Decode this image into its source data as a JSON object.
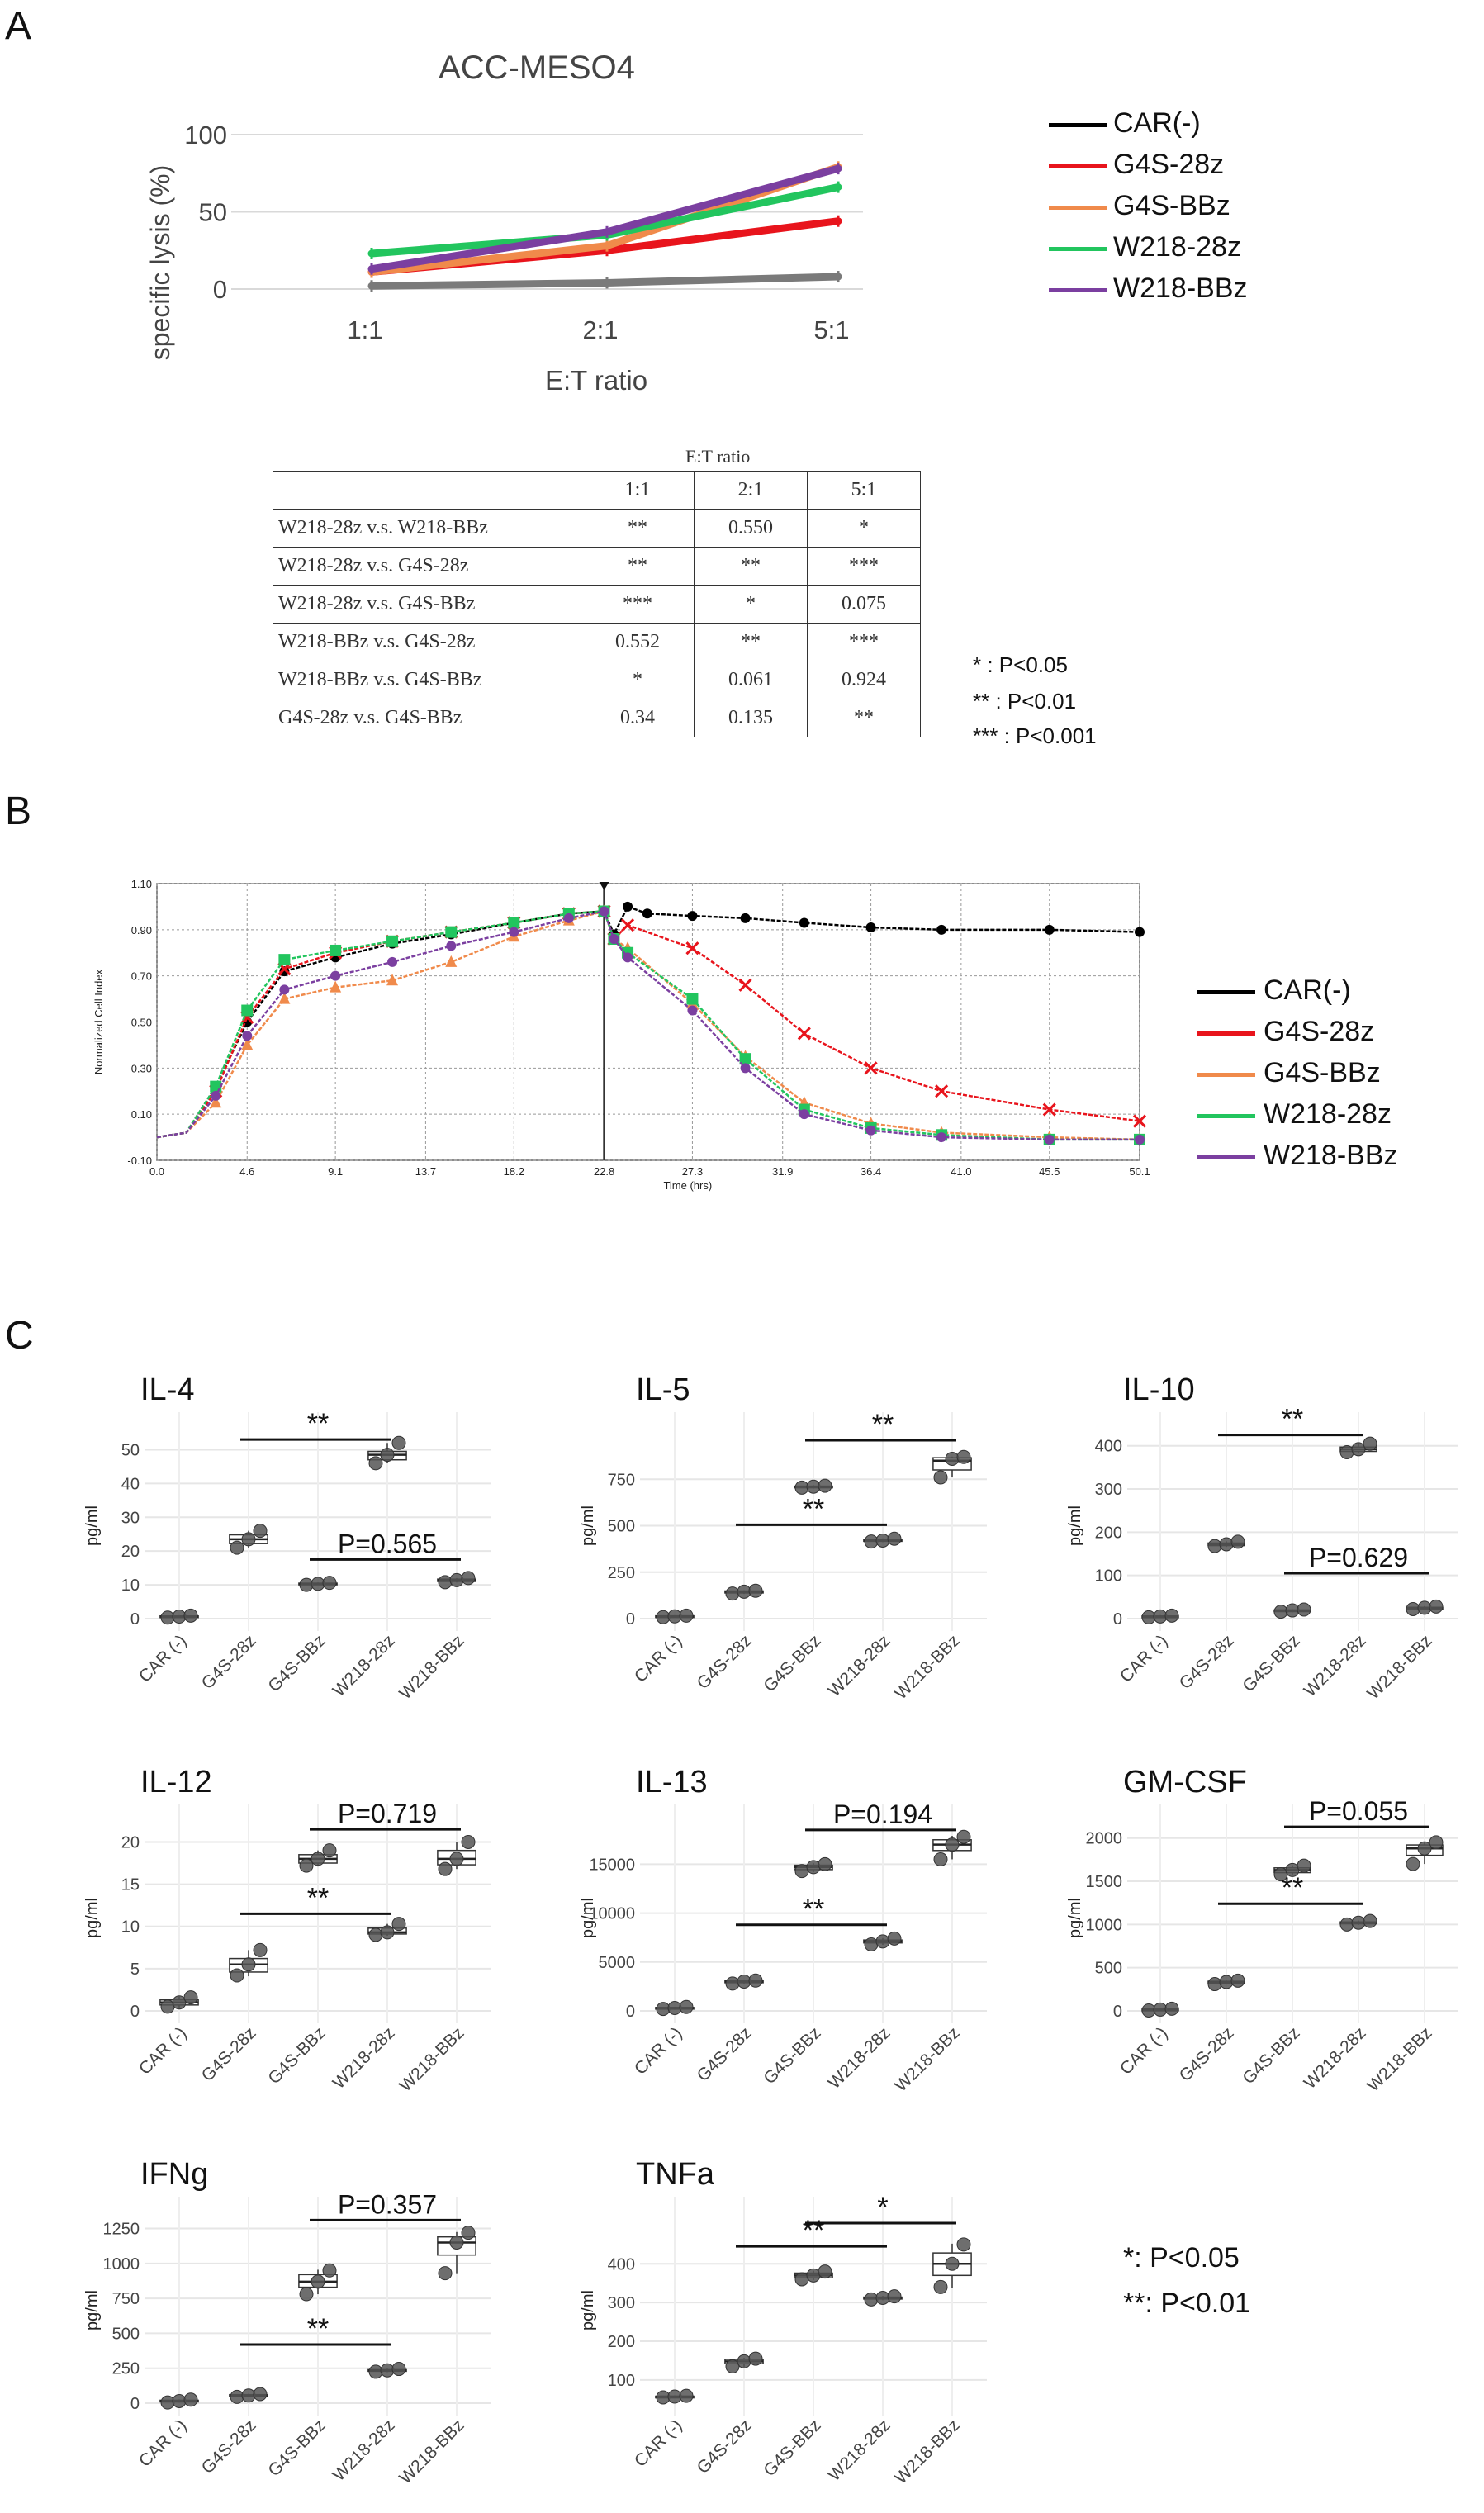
{
  "panels": {
    "a": "A",
    "b": "B",
    "c": "C"
  },
  "colors": {
    "CAR(-)": "#000000",
    "G4S-28z": "#e8141c",
    "G4S-BBz": "#f08a4b",
    "W218-28z": "#22c55e",
    "W218-BBz": "#7b3fa0",
    "carline_a": "#7a7a7a"
  },
  "legend": [
    "CAR(-)",
    "G4S-28z",
    "G4S-BBz",
    "W218-28z",
    "W218-BBz"
  ],
  "chart_data": [
    {
      "id": "A",
      "type": "line",
      "title": "ACC-MESO4",
      "xlabel": "E:T ratio",
      "ylabel": "specific lysis (%)",
      "categories": [
        "1:1",
        "2:1",
        "5:1"
      ],
      "ylim": [
        0,
        100
      ],
      "yticks": [
        "0",
        "50",
        "100"
      ],
      "series": [
        {
          "name": "CAR(-)",
          "values": [
            2,
            4,
            8
          ]
        },
        {
          "name": "G4S-28z",
          "values": [
            11,
            25,
            44
          ]
        },
        {
          "name": "G4S-BBz",
          "values": [
            11,
            28,
            79
          ]
        },
        {
          "name": "W218-28z",
          "values": [
            23,
            35,
            66
          ]
        },
        {
          "name": "W218-BBz",
          "values": [
            13,
            37,
            78
          ]
        }
      ]
    },
    {
      "id": "B",
      "type": "line",
      "ylabel": "Normalized Cell Index",
      "xlabel": "Time (hrs)",
      "xticks": [
        "0.0",
        "4.6",
        "9.1",
        "13.7",
        "18.2",
        "22.8",
        "27.3",
        "31.9",
        "36.4",
        "41.0",
        "45.5",
        "50.1"
      ],
      "yticks": [
        "-0.10",
        "0.10",
        "0.30",
        "0.50",
        "0.70",
        "0.90",
        "1.10"
      ],
      "xlim": [
        0,
        50.1
      ],
      "ylim": [
        -0.1,
        1.1
      ],
      "series": [
        {
          "name": "CAR(-)",
          "x": [
            0,
            1.5,
            3,
            4.6,
            6.5,
            9.1,
            12,
            15,
            18.2,
            21,
            22.8,
            23.3,
            24,
            25,
            27.3,
            30,
            33,
            36.4,
            40,
            45.5,
            50.1
          ],
          "y": [
            0,
            0.02,
            0.22,
            0.5,
            0.72,
            0.78,
            0.84,
            0.88,
            0.93,
            0.97,
            0.98,
            0.88,
            1.0,
            0.97,
            0.96,
            0.95,
            0.93,
            0.91,
            0.9,
            0.9,
            0.89
          ]
        },
        {
          "name": "G4S-28z",
          "x": [
            0,
            1.5,
            3,
            4.6,
            6.5,
            9.1,
            12,
            15,
            18.2,
            21,
            22.8,
            23.3,
            24,
            27.3,
            30,
            33,
            36.4,
            40,
            45.5,
            50.1
          ],
          "y": [
            0,
            0.02,
            0.2,
            0.52,
            0.73,
            0.8,
            0.85,
            0.89,
            0.93,
            0.97,
            0.98,
            0.86,
            0.92,
            0.82,
            0.66,
            0.45,
            0.3,
            0.2,
            0.12,
            0.07
          ]
        },
        {
          "name": "G4S-BBz",
          "x": [
            0,
            1.5,
            3,
            4.6,
            6.5,
            9.1,
            12,
            15,
            18.2,
            21,
            22.8,
            23.3,
            24,
            27.3,
            30,
            33,
            36.4,
            40,
            45.5,
            50.1
          ],
          "y": [
            0,
            0.02,
            0.15,
            0.4,
            0.6,
            0.65,
            0.68,
            0.76,
            0.87,
            0.94,
            0.98,
            0.86,
            0.82,
            0.58,
            0.35,
            0.15,
            0.06,
            0.02,
            0.0,
            -0.01
          ]
        },
        {
          "name": "W218-28z",
          "x": [
            0,
            1.5,
            3,
            4.6,
            6.5,
            9.1,
            12,
            15,
            18.2,
            21,
            22.8,
            23.3,
            24,
            27.3,
            30,
            33,
            36.4,
            40,
            45.5,
            50.1
          ],
          "y": [
            0,
            0.02,
            0.22,
            0.55,
            0.77,
            0.81,
            0.85,
            0.89,
            0.93,
            0.97,
            0.98,
            0.86,
            0.8,
            0.6,
            0.34,
            0.12,
            0.04,
            0.01,
            -0.01,
            -0.01
          ]
        },
        {
          "name": "W218-BBz",
          "x": [
            0,
            1.5,
            3,
            4.6,
            6.5,
            9.1,
            12,
            15,
            18.2,
            21,
            22.8,
            23.3,
            24,
            27.3,
            30,
            33,
            36.4,
            40,
            45.5,
            50.1
          ],
          "y": [
            0,
            0.02,
            0.18,
            0.44,
            0.64,
            0.7,
            0.76,
            0.83,
            0.89,
            0.95,
            0.98,
            0.86,
            0.78,
            0.55,
            0.3,
            0.1,
            0.03,
            0.0,
            -0.01,
            -0.01
          ]
        }
      ]
    },
    {
      "id": "IL-4",
      "type": "box",
      "title": "IL-4",
      "ylabel": "pg/ml",
      "categories": [
        "CAR (-)",
        "G4S-28z",
        "G4S-BBz",
        "W218-28z",
        "W218-BBz"
      ],
      "ylim": [
        0,
        55
      ],
      "yticks": [
        0,
        10,
        20,
        30,
        40,
        50
      ],
      "points": [
        [
          0.3,
          0.6,
          0.9
        ],
        [
          21,
          23.5,
          26
        ],
        [
          10,
          10.3,
          10.6
        ],
        [
          46,
          48.5,
          52
        ],
        [
          10.8,
          11.4,
          12
        ]
      ],
      "boxes": [
        [
          0.2,
          0.4,
          0.6,
          0.8,
          1.0
        ],
        [
          21,
          22.2,
          23.5,
          24.8,
          26
        ],
        [
          9.9,
          10.1,
          10.3,
          10.5,
          10.7
        ],
        [
          46,
          47,
          48.5,
          49.5,
          52
        ],
        [
          10.7,
          11,
          11.4,
          11.7,
          12
        ]
      ],
      "brackets": [
        {
          "from": 1,
          "to": 3,
          "label": "**",
          "y": 53
        },
        {
          "from": 2,
          "to": 4,
          "label": "P=0.565",
          "y": 17.5
        }
      ]
    },
    {
      "id": "IL-5",
      "type": "box",
      "title": "IL-5",
      "ylabel": "pg/ml",
      "categories": [
        "CAR (-)",
        "G4S-28z",
        "G4S-BBz",
        "W218-28z",
        "W218-BBz"
      ],
      "ylim": [
        0,
        1000
      ],
      "yticks": [
        0,
        250,
        500,
        750
      ],
      "points": [
        [
          8,
          12,
          16
        ],
        [
          135,
          145,
          150
        ],
        [
          705,
          710,
          715
        ],
        [
          415,
          420,
          430
        ],
        [
          760,
          860,
          870
        ]
      ],
      "boxes": [
        [
          6,
          9,
          12,
          15,
          18
        ],
        [
          133,
          138,
          145,
          149,
          152
        ],
        [
          700,
          705,
          710,
          713,
          718
        ],
        [
          412,
          416,
          420,
          426,
          432
        ],
        [
          760,
          800,
          850,
          866,
          872
        ]
      ],
      "brackets": [
        {
          "from": 2,
          "to": 4,
          "label": "**",
          "y": 960
        },
        {
          "from": 1,
          "to": 3,
          "label": "**",
          "y": 505
        }
      ]
    },
    {
      "id": "IL-10",
      "type": "box",
      "title": "IL-10",
      "ylabel": "pg/ml",
      "categories": [
        "CAR (-)",
        "G4S-28z",
        "G4S-BBz",
        "W218-28z",
        "W218-BBz"
      ],
      "ylim": [
        0,
        430
      ],
      "yticks": [
        0,
        100,
        200,
        300,
        400
      ],
      "points": [
        [
          3,
          5,
          7
        ],
        [
          168,
          172,
          178
        ],
        [
          16,
          19,
          21
        ],
        [
          385,
          392,
          405
        ],
        [
          22,
          25,
          28
        ]
      ],
      "boxes": [
        [
          2,
          4,
          5,
          6,
          8
        ],
        [
          166,
          169,
          172,
          175,
          179
        ],
        [
          15,
          17,
          19,
          20,
          22
        ],
        [
          384,
          387,
          392,
          397,
          406
        ],
        [
          21,
          23,
          25,
          26,
          29
        ]
      ],
      "brackets": [
        {
          "from": 1,
          "to": 3,
          "label": "**",
          "y": 425
        },
        {
          "from": 2,
          "to": 4,
          "label": "P=0.629",
          "y": 105
        }
      ]
    },
    {
      "id": "IL-12",
      "type": "box",
      "title": "IL-12",
      "ylabel": "pg/ml",
      "categories": [
        "CAR (-)",
        "G4S-28z",
        "G4S-BBz",
        "W218-28z",
        "W218-BBz"
      ],
      "ylim": [
        0,
        22
      ],
      "yticks": [
        0,
        5,
        10,
        15,
        20
      ],
      "points": [
        [
          0.5,
          1.0,
          1.6
        ],
        [
          4.2,
          5.5,
          7.2
        ],
        [
          17.2,
          18,
          19
        ],
        [
          9,
          9.3,
          10.3
        ],
        [
          16.8,
          18,
          20
        ]
      ],
      "boxes": [
        [
          0.4,
          0.7,
          1.0,
          1.3,
          1.7
        ],
        [
          4.1,
          4.6,
          5.5,
          6.2,
          7.2
        ],
        [
          17.1,
          17.5,
          18,
          18.5,
          19
        ],
        [
          8.9,
          9.1,
          9.3,
          9.8,
          10.3
        ],
        [
          16.8,
          17.3,
          18,
          19,
          20
        ]
      ],
      "brackets": [
        {
          "from": 2,
          "to": 4,
          "label": "P=0.719",
          "y": 21.5
        },
        {
          "from": 1,
          "to": 3,
          "label": "**",
          "y": 11.5
        }
      ]
    },
    {
      "id": "IL-13",
      "type": "box",
      "title": "IL-13",
      "ylabel": "pg/ml",
      "categories": [
        "CAR (-)",
        "G4S-28z",
        "G4S-BBz",
        "W218-28z",
        "W218-BBz"
      ],
      "ylim": [
        0,
        19000
      ],
      "yticks": [
        0,
        5000,
        10000,
        15000
      ],
      "points": [
        [
          200,
          300,
          400
        ],
        [
          2800,
          3000,
          3100
        ],
        [
          14300,
          14700,
          15000
        ],
        [
          6800,
          7100,
          7400
        ],
        [
          15500,
          17000,
          17800
        ]
      ],
      "boxes": [
        [
          150,
          250,
          300,
          350,
          420
        ],
        [
          2750,
          2880,
          3000,
          3080,
          3150
        ],
        [
          14200,
          14450,
          14700,
          14900,
          15100
        ],
        [
          6750,
          6950,
          7100,
          7250,
          7450
        ],
        [
          15500,
          16400,
          17000,
          17500,
          17900
        ]
      ],
      "brackets": [
        {
          "from": 2,
          "to": 4,
          "label": "P=0.194",
          "y": 18500
        },
        {
          "from": 1,
          "to": 3,
          "label": "**",
          "y": 8800
        }
      ]
    },
    {
      "id": "GM-CSF",
      "type": "box",
      "title": "GM-CSF",
      "ylabel": "pg/ml",
      "categories": [
        "CAR (-)",
        "G4S-28z",
        "G4S-BBz",
        "W218-28z",
        "W218-BBz"
      ],
      "ylim": [
        0,
        2150
      ],
      "yticks": [
        0,
        500,
        1000,
        1500,
        2000
      ],
      "points": [
        [
          5,
          15,
          25
        ],
        [
          310,
          335,
          350
        ],
        [
          1580,
          1630,
          1680
        ],
        [
          1000,
          1020,
          1040
        ],
        [
          1700,
          1880,
          1950
        ]
      ],
      "boxes": [
        [
          3,
          10,
          15,
          20,
          28
        ],
        [
          305,
          320,
          335,
          343,
          352
        ],
        [
          1575,
          1600,
          1630,
          1655,
          1685
        ],
        [
          995,
          1008,
          1020,
          1030,
          1045
        ],
        [
          1700,
          1800,
          1880,
          1920,
          1955
        ]
      ],
      "brackets": [
        {
          "from": 2,
          "to": 4,
          "label": "P=0.055",
          "y": 2130
        },
        {
          "from": 1,
          "to": 3,
          "label": "**",
          "y": 1240
        }
      ]
    },
    {
      "id": "IFNg",
      "type": "box",
      "title": "IFNg",
      "ylabel": "pg/ml",
      "categories": [
        "CAR (-)",
        "G4S-28z",
        "G4S-BBz",
        "W218-28z",
        "W218-BBz"
      ],
      "ylim": [
        0,
        1330
      ],
      "yticks": [
        0,
        250,
        500,
        750,
        1000,
        1250
      ],
      "points": [
        [
          5,
          15,
          25
        ],
        [
          45,
          55,
          65
        ],
        [
          780,
          870,
          950
        ],
        [
          225,
          235,
          245
        ],
        [
          930,
          1150,
          1220
        ]
      ],
      "boxes": [
        [
          3,
          9,
          15,
          21,
          27
        ],
        [
          43,
          49,
          55,
          61,
          67
        ],
        [
          780,
          830,
          870,
          920,
          955
        ],
        [
          222,
          229,
          235,
          240,
          247
        ],
        [
          930,
          1060,
          1150,
          1190,
          1225
        ]
      ],
      "brackets": [
        {
          "from": 2,
          "to": 4,
          "label": "P=0.357",
          "y": 1310
        },
        {
          "from": 1,
          "to": 3,
          "label": "**",
          "y": 420
        }
      ]
    },
    {
      "id": "TNFa",
      "type": "box",
      "title": "TNFa",
      "ylabel": "pg/ml",
      "categories": [
        "CAR (-)",
        "G4S-28z",
        "G4S-BBz",
        "W218-28z",
        "W218-BBz"
      ],
      "ylim": [
        40,
        520
      ],
      "yticks": [
        100,
        200,
        300,
        400
      ],
      "points": [
        [
          55,
          57,
          59
        ],
        [
          135,
          148,
          155
        ],
        [
          360,
          370,
          380
        ],
        [
          308,
          312,
          316
        ],
        [
          340,
          400,
          450
        ]
      ],
      "boxes": [
        [
          54,
          56,
          57,
          58,
          60
        ],
        [
          133,
          142,
          148,
          153,
          157
        ],
        [
          358,
          364,
          370,
          376,
          382
        ],
        [
          306,
          309,
          312,
          314,
          317
        ],
        [
          338,
          370,
          400,
          428,
          452
        ]
      ],
      "brackets": [
        {
          "from": 2,
          "to": 4,
          "label": "*",
          "y": 505
        },
        {
          "from": 1,
          "to": 3,
          "label": "**",
          "y": 445
        }
      ]
    }
  ],
  "table": {
    "caption": "E:T ratio",
    "header": [
      "",
      "1:1",
      "2:1",
      "5:1"
    ],
    "rows": [
      [
        "W218-28z v.s. W218-BBz",
        "**",
        "0.550",
        "*"
      ],
      [
        "W218-28z v.s. G4S-28z",
        "**",
        "**",
        "***"
      ],
      [
        "W218-28z v.s. G4S-BBz",
        "***",
        "*",
        "0.075"
      ],
      [
        "W218-BBz v.s. G4S-28z",
        "0.552",
        "**",
        "***"
      ],
      [
        "W218-BBz v.s. G4S-BBz",
        "*",
        "0.061",
        "0.924"
      ],
      [
        "G4S-28z v.s. G4S-BBz",
        "0.34",
        "0.135",
        "**"
      ]
    ]
  },
  "sig_a": [
    "* : P<0.05",
    "** : P<0.01",
    "*** : P<0.001"
  ],
  "sig_c": [
    "*: P<0.05",
    "**: P<0.01"
  ]
}
